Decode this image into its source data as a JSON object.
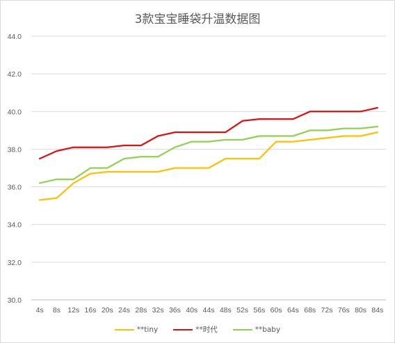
{
  "chart_data": {
    "type": "line",
    "title": "3款宝宝睡袋升温数据图",
    "xlabel": "",
    "ylabel": "",
    "ylim": [
      30,
      44
    ],
    "y_ticks": [
      "30.0",
      "32.0",
      "34.0",
      "36.0",
      "38.0",
      "40.0",
      "42.0",
      "44.0"
    ],
    "grid": true,
    "legend_position": "bottom",
    "categories": [
      "4s",
      "8s",
      "12s",
      "16s",
      "20s",
      "24s",
      "28s",
      "32s",
      "36s",
      "40s",
      "44s",
      "48s",
      "52s",
      "56s",
      "60s",
      "64s",
      "68s",
      "72s",
      "76s",
      "80s",
      "84s"
    ],
    "series": [
      {
        "name": "**tiny",
        "color": "#ffc000",
        "values": [
          35.3,
          35.4,
          36.2,
          36.7,
          36.8,
          36.8,
          36.8,
          36.8,
          37.0,
          37.0,
          37.0,
          37.5,
          37.5,
          37.5,
          38.4,
          38.4,
          38.5,
          38.6,
          38.7,
          38.7,
          38.9
        ]
      },
      {
        "name": "**时代",
        "color": "#e01010",
        "values": [
          37.5,
          37.9,
          38.1,
          38.1,
          38.1,
          38.2,
          38.2,
          38.7,
          38.9,
          38.9,
          38.9,
          38.9,
          39.5,
          39.6,
          39.6,
          39.6,
          40.0,
          40.0,
          40.0,
          40.0,
          40.2
        ]
      },
      {
        "name": "**baby",
        "color": "#92d050",
        "values": [
          36.2,
          36.4,
          36.4,
          37.0,
          37.0,
          37.5,
          37.6,
          37.6,
          38.1,
          38.4,
          38.4,
          38.5,
          38.5,
          38.7,
          38.7,
          38.7,
          39.0,
          39.0,
          39.1,
          39.1,
          39.2
        ]
      }
    ]
  }
}
